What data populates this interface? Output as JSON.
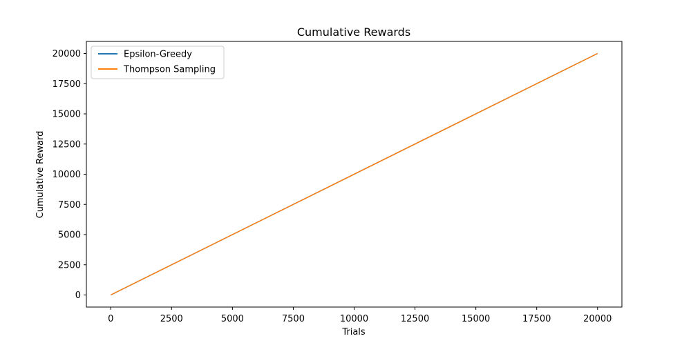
{
  "chart_data": {
    "type": "line",
    "title": "Cumulative Rewards",
    "xlabel": "Trials",
    "ylabel": "Cumulative Reward",
    "xlim": [
      -1000,
      21000
    ],
    "ylim": [
      -1000,
      21000
    ],
    "x_ticks": [
      0,
      2500,
      5000,
      7500,
      10000,
      12500,
      15000,
      17500,
      20000
    ],
    "y_ticks": [
      0,
      2500,
      5000,
      7500,
      10000,
      12500,
      15000,
      17500,
      20000
    ],
    "grid": false,
    "legend_position": "top-left",
    "series": [
      {
        "name": "Epsilon-Greedy",
        "color": "#1f77b4",
        "x": [
          0,
          20000
        ],
        "y": [
          0,
          20000
        ]
      },
      {
        "name": "Thompson Sampling",
        "color": "#ff7f0e",
        "x": [
          0,
          20000
        ],
        "y": [
          0,
          20000
        ]
      }
    ]
  }
}
